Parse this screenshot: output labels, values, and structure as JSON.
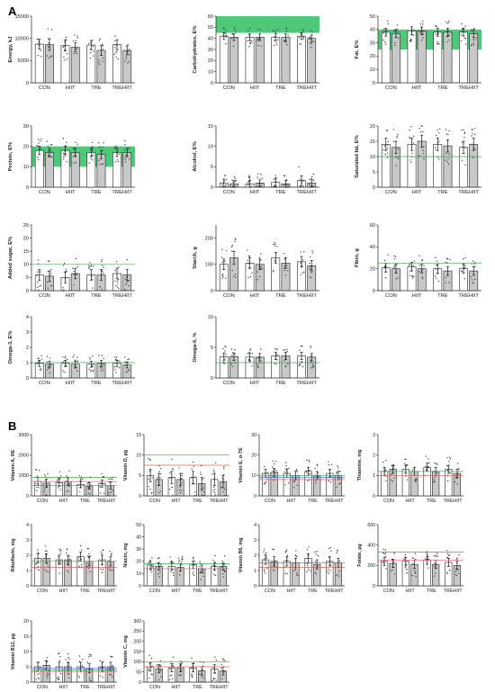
{
  "sections": [
    "A",
    "B"
  ],
  "group_labels": [
    "CON",
    "HIIT",
    "TRE",
    "TREHIIT"
  ],
  "colors": {
    "bar_baseline": "#ffffff",
    "bar_followup": "#c8c8c8",
    "bar_outline": "#222222",
    "recommended_band": "#1db954",
    "recommended_line": "#2e9e3a",
    "line_red": "#e05050",
    "line_blue": "#4a64d8"
  },
  "chart_data": [
    {
      "section": "A",
      "type": "bar",
      "ylabel": "Energy, kJ",
      "ylim": [
        0,
        15000
      ],
      "yticks": [
        0,
        5000,
        10000,
        15000
      ],
      "categories": [
        "CON",
        "HIIT",
        "TRE",
        "TREHIIT"
      ],
      "series": [
        {
          "values": [
            8700,
            8400,
            8500,
            8600
          ],
          "errors": [
            1100,
            1200,
            1000,
            1100
          ]
        },
        {
          "values": [
            8600,
            8000,
            7300,
            7300
          ],
          "errors": [
            1300,
            1000,
            1100,
            1000
          ]
        }
      ],
      "band": null,
      "lines": []
    },
    {
      "section": "A",
      "type": "bar",
      "ylabel": "Carbohydrates, E%",
      "ylim": [
        0,
        60
      ],
      "yticks": [
        0,
        10,
        20,
        30,
        40,
        50,
        60
      ],
      "categories": [
        "CON",
        "HIIT",
        "TRE",
        "TREHIIT"
      ],
      "series": [
        {
          "values": [
            42,
            41,
            41,
            42
          ],
          "errors": [
            3,
            3,
            3,
            3
          ]
        },
        {
          "values": [
            41,
            41,
            41,
            40
          ],
          "errors": [
            3,
            3,
            3,
            3
          ]
        }
      ],
      "band": [
        45,
        60
      ],
      "lines": []
    },
    {
      "section": "A",
      "type": "bar",
      "ylabel": "Fat, E%",
      "ylim": [
        0,
        50
      ],
      "yticks": [
        0,
        10,
        20,
        30,
        40,
        50
      ],
      "categories": [
        "CON",
        "HIIT",
        "TRE",
        "TREHIIT"
      ],
      "series": [
        {
          "values": [
            38,
            39,
            38,
            38
          ],
          "errors": [
            3,
            3,
            3,
            3
          ]
        },
        {
          "values": [
            37,
            39,
            38,
            37
          ],
          "errors": [
            3,
            3,
            3,
            3
          ]
        }
      ],
      "band": [
        25,
        40
      ],
      "lines": []
    },
    {
      "section": "A",
      "type": "bar",
      "ylabel": "Protein, E%",
      "ylim": [
        0,
        30
      ],
      "yticks": [
        0,
        10,
        20,
        30
      ],
      "categories": [
        "CON",
        "HIIT",
        "TRE",
        "TREHIIT"
      ],
      "series": [
        {
          "values": [
            18,
            18,
            17,
            17
          ],
          "errors": [
            2,
            2,
            2,
            2
          ]
        },
        {
          "values": [
            17,
            17,
            16,
            17
          ],
          "errors": [
            2,
            2,
            2,
            2
          ]
        }
      ],
      "band": [
        10,
        20
      ],
      "lines": []
    },
    {
      "section": "A",
      "type": "bar",
      "ylabel": "Alcohol, E%",
      "ylim": [
        0,
        15
      ],
      "yticks": [
        0,
        5,
        10,
        15
      ],
      "categories": [
        "CON",
        "HIIT",
        "TRE",
        "TREHIIT"
      ],
      "series": [
        {
          "values": [
            1.0,
            0.8,
            1.2,
            1.6
          ],
          "errors": [
            1.0,
            0.8,
            1.0,
            1.2
          ]
        },
        {
          "values": [
            0.8,
            1.0,
            0.8,
            1.0
          ],
          "errors": [
            0.8,
            0.8,
            0.8,
            0.8
          ]
        }
      ],
      "band": null,
      "lines": []
    },
    {
      "section": "A",
      "type": "bar",
      "ylabel": "Saturated fat, E%",
      "ylim": [
        0,
        20
      ],
      "yticks": [
        0,
        5,
        10,
        15,
        20
      ],
      "categories": [
        "CON",
        "HIIT",
        "TRE",
        "TREHIIT"
      ],
      "series": [
        {
          "values": [
            14,
            14,
            14,
            13
          ],
          "errors": [
            2,
            2,
            2,
            2
          ]
        },
        {
          "values": [
            13,
            15,
            13.5,
            14
          ],
          "errors": [
            2,
            2,
            2,
            2
          ]
        }
      ],
      "band": null,
      "lines": [
        {
          "value": 10,
          "color": "#2e9e3a"
        }
      ]
    },
    {
      "section": "A",
      "type": "bar",
      "ylabel": "Added sugar, E%",
      "ylim": [
        0,
        25
      ],
      "yticks": [
        0,
        5,
        10,
        15,
        20,
        25
      ],
      "categories": [
        "CON",
        "HIIT",
        "TRE",
        "TREHIIT"
      ],
      "series": [
        {
          "values": [
            6,
            5,
            6,
            6.5
          ],
          "errors": [
            2,
            2,
            2,
            2
          ]
        },
        {
          "values": [
            5.5,
            6.5,
            6,
            6
          ],
          "errors": [
            2,
            2,
            2,
            2
          ]
        }
      ],
      "band": null,
      "lines": [
        {
          "value": 10,
          "color": "#2e9e3a"
        }
      ]
    },
    {
      "section": "A",
      "type": "bar",
      "ylabel": "Starch, g",
      "ylim": [
        0,
        250
      ],
      "yticks": [
        0,
        100,
        200
      ],
      "categories": [
        "CON",
        "HIIT",
        "TRE",
        "TREHIIT"
      ],
      "series": [
        {
          "values": [
            100,
            105,
            125,
            110
          ],
          "errors": [
            20,
            20,
            20,
            20
          ]
        },
        {
          "values": [
            125,
            100,
            105,
            95
          ],
          "errors": [
            25,
            20,
            20,
            20
          ]
        }
      ],
      "band": null,
      "lines": []
    },
    {
      "section": "A",
      "type": "bar",
      "ylabel": "Fibre, g",
      "ylim": [
        0,
        60
      ],
      "yticks": [
        0,
        20,
        40,
        60
      ],
      "categories": [
        "CON",
        "HIIT",
        "TRE",
        "TREHIIT"
      ],
      "series": [
        {
          "values": [
            21,
            22,
            20,
            20
          ],
          "errors": [
            4,
            4,
            4,
            4
          ]
        },
        {
          "values": [
            20,
            20,
            18,
            18
          ],
          "errors": [
            4,
            4,
            4,
            4
          ]
        }
      ],
      "band": null,
      "lines": [
        {
          "value": 25,
          "color": "#2e9e3a"
        }
      ]
    },
    {
      "section": "A",
      "type": "bar",
      "ylabel": "Omega-3, E%",
      "ylim": [
        0,
        4
      ],
      "yticks": [
        0,
        1,
        2,
        3,
        4
      ],
      "categories": [
        "CON",
        "HIIT",
        "TRE",
        "TREHIIT"
      ],
      "series": [
        {
          "values": [
            0.95,
            0.95,
            0.9,
            0.95
          ],
          "errors": [
            0.2,
            0.2,
            0.2,
            0.2
          ]
        },
        {
          "values": [
            0.9,
            0.9,
            0.95,
            0.85
          ],
          "errors": [
            0.2,
            0.2,
            0.2,
            0.2
          ]
        }
      ],
      "band": null,
      "lines": [
        {
          "value": 1,
          "color": "#2e9e3a"
        }
      ]
    },
    {
      "section": "A",
      "type": "bar",
      "ylabel": "Omega-6, %",
      "ylim": [
        0,
        10
      ],
      "yticks": [
        0,
        5,
        10
      ],
      "categories": [
        "CON",
        "HIIT",
        "TRE",
        "TREHIIT"
      ],
      "series": [
        {
          "values": [
            3.5,
            3.4,
            3.6,
            3.6
          ],
          "errors": [
            0.6,
            0.6,
            0.6,
            0.6
          ]
        },
        {
          "values": [
            3.5,
            3.4,
            3.6,
            3.4
          ],
          "errors": [
            0.6,
            0.6,
            0.6,
            0.6
          ]
        }
      ],
      "band": null,
      "lines": [
        {
          "value": 2.5,
          "color": "#2e9e3a"
        }
      ]
    },
    {
      "section": "B",
      "type": "bar",
      "ylabel": "Vitamin A, RE",
      "ylim": [
        0,
        3000
      ],
      "yticks": [
        0,
        1000,
        2000,
        3000
      ],
      "categories": [
        "CON",
        "HIIT",
        "TRE",
        "TREHIIT"
      ],
      "series": [
        {
          "values": [
            700,
            650,
            560,
            600
          ],
          "errors": [
            200,
            180,
            160,
            170
          ]
        },
        {
          "values": [
            620,
            700,
            480,
            500
          ],
          "errors": [
            200,
            180,
            160,
            170
          ]
        }
      ],
      "band": null,
      "lines": [
        {
          "value": 900,
          "color": "#2e9e3a"
        },
        {
          "value": 700,
          "color": "#e05050"
        },
        {
          "value": 500,
          "color": "#4a64d8"
        }
      ]
    },
    {
      "section": "B",
      "type": "bar",
      "ylabel": "Vitamin D, µg",
      "ylim": [
        0,
        15
      ],
      "yticks": [
        0,
        5,
        10,
        15
      ],
      "categories": [
        "CON",
        "HIIT",
        "TRE",
        "TREHIIT"
      ],
      "series": [
        {
          "values": [
            5,
            4.5,
            4.5,
            4
          ],
          "errors": [
            1.5,
            1.5,
            1.5,
            1.5
          ]
        },
        {
          "values": [
            4,
            4,
            3,
            3.5
          ],
          "errors": [
            1.5,
            1.5,
            1.5,
            1.5
          ]
        }
      ],
      "band": null,
      "lines": [
        {
          "value": 10,
          "color": "#2e9e3a"
        },
        {
          "value": 7.5,
          "color": "#e05050"
        }
      ]
    },
    {
      "section": "B",
      "type": "bar",
      "ylabel": "Vitamin E, α-TE",
      "ylim": [
        0,
        30
      ],
      "yticks": [
        0,
        10,
        20,
        30
      ],
      "categories": [
        "CON",
        "HIIT",
        "TRE",
        "TREHIIT"
      ],
      "series": [
        {
          "values": [
            11,
            11,
            12,
            11
          ],
          "errors": [
            2,
            2,
            2,
            2
          ]
        },
        {
          "values": [
            11.5,
            10,
            10,
            10
          ],
          "errors": [
            2,
            2,
            2,
            2
          ]
        }
      ],
      "band": null,
      "lines": [
        {
          "value": 10,
          "color": "#2e9e3a"
        },
        {
          "value": 8,
          "color": "#e05050"
        },
        {
          "value": 9,
          "color": "#4a64d8"
        }
      ]
    },
    {
      "section": "B",
      "type": "bar",
      "ylabel": "Thiamine, mg",
      "ylim": [
        0,
        3
      ],
      "yticks": [
        0,
        1,
        2,
        3
      ],
      "categories": [
        "CON",
        "HIIT",
        "TRE",
        "TREHIIT"
      ],
      "series": [
        {
          "values": [
            1.2,
            1.3,
            1.4,
            1.3
          ],
          "errors": [
            0.2,
            0.2,
            0.2,
            0.2
          ]
        },
        {
          "values": [
            1.3,
            1.2,
            1.2,
            1.1
          ],
          "errors": [
            0.2,
            0.2,
            0.2,
            0.2
          ]
        }
      ],
      "band": null,
      "lines": [
        {
          "value": 1.2,
          "color": "#2e9e3a"
        },
        {
          "value": 1.0,
          "color": "#e05050"
        }
      ]
    },
    {
      "section": "B",
      "type": "bar",
      "ylabel": "Riboflavin, mg",
      "ylim": [
        0,
        4
      ],
      "yticks": [
        0,
        1,
        2,
        3,
        4
      ],
      "categories": [
        "CON",
        "HIIT",
        "TRE",
        "TREHIIT"
      ],
      "series": [
        {
          "values": [
            1.8,
            1.7,
            1.9,
            1.7
          ],
          "errors": [
            0.3,
            0.3,
            0.3,
            0.3
          ]
        },
        {
          "values": [
            1.8,
            1.7,
            1.6,
            1.6
          ],
          "errors": [
            0.3,
            0.3,
            0.3,
            0.3
          ]
        }
      ],
      "band": null,
      "lines": [
        {
          "value": 1.6,
          "color": "#2e9e3a"
        },
        {
          "value": 1.2,
          "color": "#e05050"
        }
      ]
    },
    {
      "section": "B",
      "type": "bar",
      "ylabel": "Niacin, mg",
      "ylim": [
        0,
        50
      ],
      "yticks": [
        0,
        10,
        20,
        30,
        40,
        50
      ],
      "categories": [
        "CON",
        "HIIT",
        "TRE",
        "TREHIIT"
      ],
      "series": [
        {
          "values": [
            17,
            16,
            17,
            16
          ],
          "errors": [
            3,
            3,
            3,
            3
          ]
        },
        {
          "values": [
            16,
            15,
            14,
            16
          ],
          "errors": [
            3,
            3,
            3,
            3
          ]
        }
      ],
      "band": null,
      "lines": [
        {
          "value": 18,
          "color": "#2e9e3a"
        },
        {
          "value": 14,
          "color": "#e05050"
        }
      ]
    },
    {
      "section": "B",
      "type": "bar",
      "ylabel": "Vitamin B6, mg",
      "ylim": [
        0,
        4
      ],
      "yticks": [
        0,
        1,
        2,
        3,
        4
      ],
      "categories": [
        "CON",
        "HIIT",
        "TRE",
        "TREHIIT"
      ],
      "series": [
        {
          "values": [
            1.7,
            1.6,
            1.8,
            1.6
          ],
          "errors": [
            0.3,
            0.3,
            0.3,
            0.3
          ]
        },
        {
          "values": [
            1.6,
            1.5,
            1.4,
            1.5
          ],
          "errors": [
            0.3,
            0.3,
            0.3,
            0.3
          ]
        }
      ],
      "band": null,
      "lines": [
        {
          "value": 1.5,
          "color": "#2e9e3a"
        },
        {
          "value": 1.2,
          "color": "#e05050"
        }
      ]
    },
    {
      "section": "B",
      "type": "bar",
      "ylabel": "Folate, µg",
      "ylim": [
        0,
        600
      ],
      "yticks": [
        0,
        200,
        400,
        600
      ],
      "categories": [
        "CON",
        "HIIT",
        "TRE",
        "TREHIIT"
      ],
      "series": [
        {
          "values": [
            240,
            240,
            250,
            230
          ],
          "errors": [
            40,
            40,
            40,
            40
          ]
        },
        {
          "values": [
            220,
            210,
            210,
            200
          ],
          "errors": [
            40,
            40,
            40,
            40
          ]
        }
      ],
      "band": null,
      "lines": [
        {
          "value": 330,
          "color": "#2e9e3a"
        },
        {
          "value": 250,
          "color": "#e05050"
        }
      ]
    },
    {
      "section": "B",
      "type": "bar",
      "ylabel": "Vitamin B12, µg",
      "ylim": [
        0,
        20
      ],
      "yticks": [
        0,
        5,
        10,
        15,
        20
      ],
      "categories": [
        "CON",
        "HIIT",
        "TRE",
        "TREHIIT"
      ],
      "series": [
        {
          "values": [
            5,
            5,
            5,
            5
          ],
          "errors": [
            1.5,
            1.5,
            1.5,
            1.5
          ]
        },
        {
          "values": [
            5.5,
            5,
            4.5,
            5
          ],
          "errors": [
            1.5,
            1.5,
            1.5,
            1.5
          ]
        }
      ],
      "band": null,
      "lines": [
        {
          "value": 4,
          "color": "#2e9e3a"
        },
        {
          "value": 3.5,
          "color": "#e05050"
        },
        {
          "value": 4.5,
          "color": "#4a64d8"
        }
      ]
    },
    {
      "section": "B",
      "type": "bar",
      "ylabel": "Vitamin C, mg",
      "ylim": [
        0,
        300
      ],
      "yticks": [
        0,
        50,
        100,
        150,
        200,
        250,
        300
      ],
      "categories": [
        "CON",
        "HIIT",
        "TRE",
        "TREHIIT"
      ],
      "series": [
        {
          "values": [
            75,
            70,
            70,
            65
          ],
          "errors": [
            20,
            20,
            20,
            20
          ]
        },
        {
          "values": [
            65,
            70,
            55,
            55
          ],
          "errors": [
            20,
            20,
            20,
            20
          ]
        }
      ],
      "band": null,
      "lines": [
        {
          "value": 100,
          "color": "#2e9e3a"
        },
        {
          "value": 75,
          "color": "#e05050"
        }
      ]
    }
  ]
}
